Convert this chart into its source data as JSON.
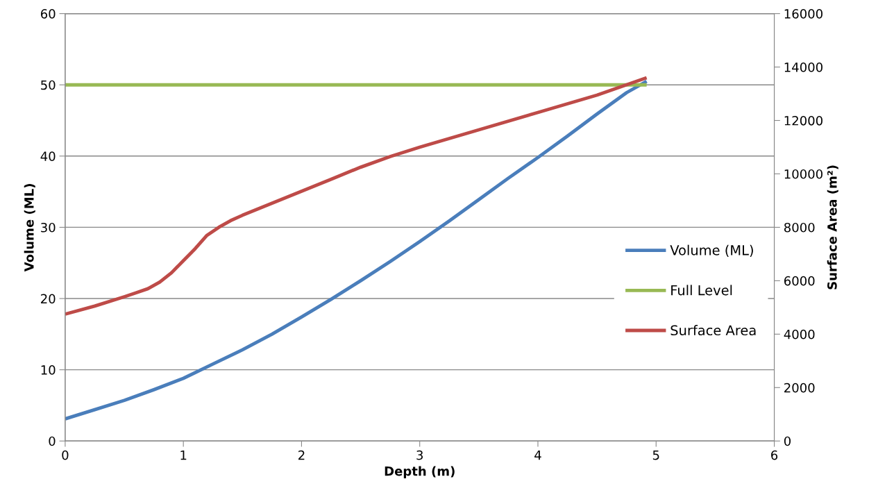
{
  "chart_data": {
    "type": "line",
    "xlabel": "Depth (m)",
    "ylabel": "Volume (ML)",
    "y2label": "Surface Area (m²)",
    "xlim": [
      0,
      6
    ],
    "xticks": [
      0,
      1,
      2,
      3,
      4,
      5,
      6
    ],
    "ylim": [
      0,
      60
    ],
    "yticks": [
      0,
      10,
      20,
      30,
      40,
      50,
      60
    ],
    "y2lim": [
      0,
      16000
    ],
    "y2ticks": [
      0,
      2000,
      4000,
      6000,
      8000,
      10000,
      12000,
      14000,
      16000
    ],
    "grid": "y",
    "legend": "right",
    "marker": "none",
    "line_style": "solid",
    "series": [
      {
        "name": "Volume (ML)",
        "color": "#4a7ebb",
        "x": [
          0,
          0.25,
          0.5,
          0.75,
          1.0,
          1.25,
          1.5,
          1.75,
          2.0,
          2.25,
          2.5,
          2.75,
          3.0,
          3.25,
          3.5,
          3.75,
          4.0,
          4.25,
          4.5,
          4.75,
          4.92
        ],
        "values": [
          3.1,
          4.4,
          5.7,
          7.2,
          8.8,
          10.8,
          12.8,
          15.0,
          17.4,
          19.9,
          22.5,
          25.2,
          28.0,
          30.9,
          33.9,
          36.9,
          39.8,
          42.8,
          45.9,
          48.9,
          50.5
        ]
      },
      {
        "name": "Full Level",
        "color": "#98b954",
        "x": [
          0,
          4.92
        ],
        "values": [
          50,
          50
        ]
      },
      {
        "name": "Surface Area",
        "color": "#be4b48",
        "axis": "y2",
        "x": [
          0,
          0.25,
          0.5,
          0.6,
          0.7,
          0.8,
          0.9,
          1.0,
          1.1,
          1.2,
          1.3,
          1.4,
          1.5,
          1.75,
          2.0,
          2.25,
          2.5,
          2.75,
          3.0,
          3.5,
          4.0,
          4.5,
          4.92
        ],
        "values": [
          4750,
          5050,
          5400,
          5550,
          5700,
          5950,
          6300,
          6750,
          7200,
          7700,
          8000,
          8250,
          8450,
          8900,
          9350,
          9800,
          10250,
          10650,
          11000,
          11650,
          12300,
          12950,
          13600
        ]
      }
    ]
  }
}
